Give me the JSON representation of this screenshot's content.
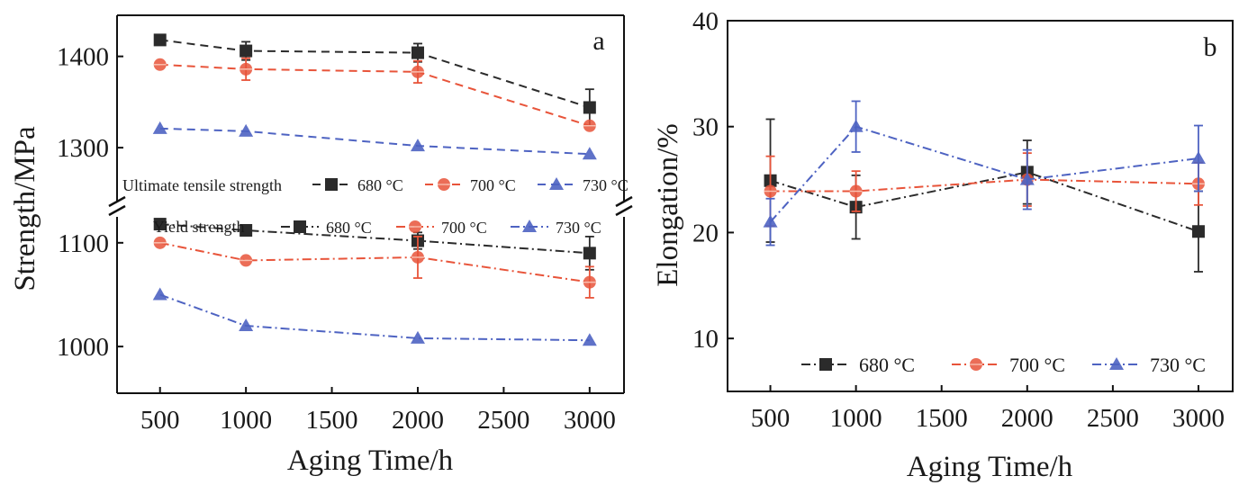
{
  "chart_data": [
    {
      "panel": "a",
      "type": "line",
      "x": [
        500,
        1000,
        2000,
        3000
      ],
      "xlabel": "Aging Time/h",
      "ylabel": "Strength/MPa",
      "xlim": [
        250,
        3200
      ],
      "x_ticks": [
        500,
        1000,
        1500,
        2000,
        2500,
        3000
      ],
      "ylim_upper": [
        1240,
        1445
      ],
      "ylim_lower": [
        955,
        1125
      ],
      "y_ticks_upper": [
        1300,
        1400
      ],
      "y_ticks_lower": [
        1000,
        1100
      ],
      "broken_axis": true,
      "groups": [
        {
          "label": "Ultimate tensile strength",
          "line_style": "dashed",
          "series": [
            {
              "name": "680 °C",
              "color": "#2b2b2b",
              "marker": "square",
              "values": [
                1418,
                1406,
                1404,
                1344
              ],
              "errors": [
                0,
                10,
                10,
                20
              ]
            },
            {
              "name": "700 °C",
              "color": "#e8543a",
              "marker": "circle",
              "values": [
                1391,
                1386,
                1383,
                1324
              ],
              "errors": [
                0,
                12,
                12,
                0
              ]
            },
            {
              "name": "730 °C",
              "color": "#4e63c2",
              "marker": "triangle",
              "values": [
                1321,
                1318,
                1302,
                1293
              ],
              "errors": [
                0,
                0,
                0,
                0
              ]
            }
          ]
        },
        {
          "label": "Yield strength",
          "line_style": "dashdot",
          "series": [
            {
              "name": "680 °C",
              "color": "#2b2b2b",
              "marker": "square",
              "values": [
                1118,
                1112,
                1102,
                1090
              ],
              "errors": [
                0,
                0,
                8,
                16
              ]
            },
            {
              "name": "700 °C",
              "color": "#e8543a",
              "marker": "circle",
              "values": [
                1100,
                1083,
                1086,
                1062
              ],
              "errors": [
                0,
                0,
                20,
                15
              ]
            },
            {
              "name": "730 °C",
              "color": "#4e63c2",
              "marker": "triangle",
              "values": [
                1050,
                1020,
                1008,
                1006
              ],
              "errors": [
                0,
                0,
                0,
                0
              ]
            }
          ]
        }
      ]
    },
    {
      "panel": "b",
      "type": "line",
      "x": [
        500,
        1000,
        2000,
        3000
      ],
      "xlabel": "Aging Time/h",
      "ylabel": "Elongation/%",
      "xlim": [
        250,
        3200
      ],
      "ylim": [
        5,
        40
      ],
      "x_ticks": [
        500,
        1000,
        1500,
        2000,
        2500,
        3000
      ],
      "y_ticks": [
        10,
        20,
        30,
        40
      ],
      "line_style": "dashdot",
      "series": [
        {
          "name": "680 °C",
          "color": "#2b2b2b",
          "marker": "square",
          "values": [
            24.9,
            22.4,
            25.7,
            20.1
          ],
          "errors": [
            5.8,
            3.0,
            3.0,
            3.8
          ]
        },
        {
          "name": "700 °C",
          "color": "#e8543a",
          "marker": "circle",
          "values": [
            23.9,
            23.9,
            25.0,
            24.6
          ],
          "errors": [
            3.3,
            1.9,
            2.5,
            2.0
          ]
        },
        {
          "name": "730 °C",
          "color": "#4e63c2",
          "marker": "triangle",
          "values": [
            21.0,
            30.0,
            25.0,
            27.0
          ],
          "errors": [
            2.2,
            2.4,
            2.8,
            3.1
          ]
        }
      ]
    }
  ]
}
